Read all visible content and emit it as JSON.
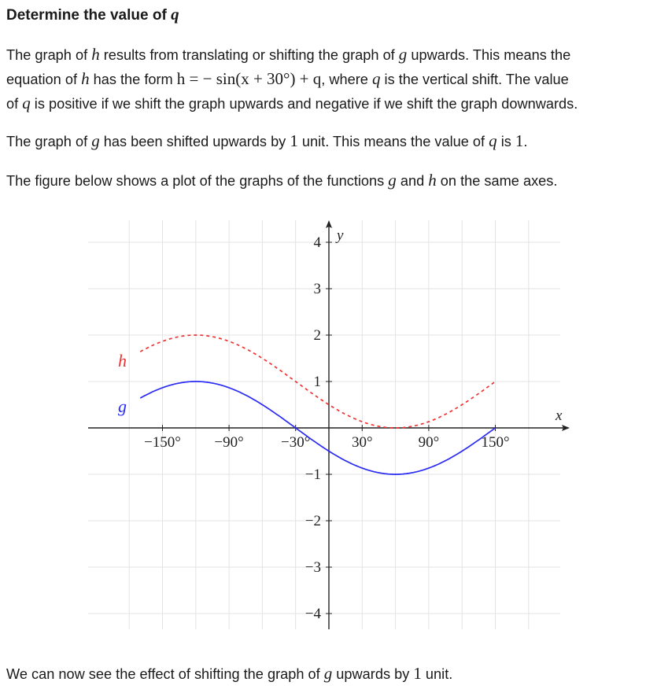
{
  "heading": {
    "text": "Determine the value of ",
    "var": "q"
  },
  "para1": {
    "line1_a": "The graph of ",
    "h": "h",
    "line1_b": " results from translating or shifting the graph of ",
    "g": "g",
    "line1_c": " upwards. This means the",
    "line2_a": "equation of ",
    "line2_b": " has the form ",
    "formula": "h = − sin(x + 30°) + q",
    "line2_c": ", where ",
    "q": "q",
    "line2_d": " is the vertical shift. The value",
    "line3_a": "of ",
    "line3_b": " is positive if we shift the graph upwards and negative if we shift the graph downwards."
  },
  "para2": {
    "a": "The graph of ",
    "g": "g",
    "b": " has been shifted upwards by ",
    "one": "1",
    "c": " unit. This means the value of ",
    "q": "q",
    "d": " is ",
    "val": "1",
    "e": "."
  },
  "para3": {
    "a": "The figure below shows a plot of the graphs of the functions ",
    "g": "g",
    "b": " and ",
    "h": "h",
    "c": " on the same axes."
  },
  "para4": {
    "a": "We can now see the effect of shifting the graph of ",
    "g": "g",
    "b": " upwards by ",
    "one": "1",
    "c": " unit."
  },
  "chart_data": {
    "type": "line",
    "x_ticks": [
      -150,
      -90,
      -30,
      30,
      90,
      150
    ],
    "x_tick_labels": [
      "−150°",
      "−90°",
      "−30°",
      "30°",
      "90°",
      "150°"
    ],
    "y_ticks": [
      -4,
      -3,
      -2,
      -1,
      1,
      2,
      3,
      4
    ],
    "y_tick_labels": [
      "−4",
      "−3",
      "−2",
      "−1",
      "1",
      "2",
      "3",
      "4"
    ],
    "xlim": [
      -180,
      180
    ],
    "ylim": [
      -4,
      4
    ],
    "xlabel": "x",
    "ylabel": "y",
    "grid": true,
    "series": [
      {
        "name": "g",
        "expression": "-sin(x + 30°)",
        "x_range": [
          -170,
          150
        ],
        "color": "#2a2af5",
        "style": "solid"
      },
      {
        "name": "h",
        "expression": "-sin(x + 30°) + 1",
        "x_range": [
          -170,
          150
        ],
        "color": "#ee3333",
        "style": "dashed"
      }
    ]
  }
}
